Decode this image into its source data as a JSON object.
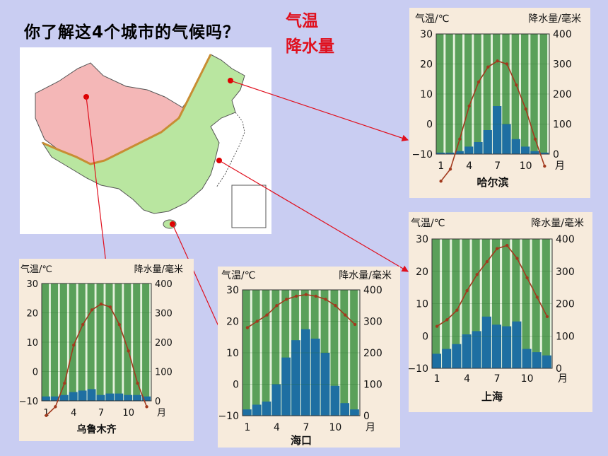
{
  "question": "你了解这4个城市的气候吗？",
  "legend": {
    "temperature": "气温",
    "precipitation": "降水量"
  },
  "colors": {
    "plot_bg": "#5aa05a",
    "bar": "#1e6fa2",
    "line": "#a23a1e",
    "panel": "#f7ebdc",
    "page": "#c9cdf2",
    "arrow": "#e0101e"
  },
  "chart_common": {
    "left_axis_label": "气温/℃",
    "right_axis_label": "降水量/毫米",
    "left_ticks": [
      "30",
      "20",
      "10",
      "0",
      "−10"
    ],
    "right_ticks": [
      "400",
      "300",
      "200",
      "100",
      "0"
    ],
    "x_ticks": [
      "1",
      "4",
      "7",
      "10"
    ],
    "x_unit": "月"
  },
  "chart_data": [
    {
      "type": "bar+line",
      "city": "哈尔滨",
      "categories": [
        "1",
        "2",
        "3",
        "4",
        "5",
        "6",
        "7",
        "8",
        "9",
        "10",
        "11",
        "12"
      ],
      "temp_ylim": [
        -10,
        30
      ],
      "precip_ylim": [
        0,
        400
      ],
      "temperature": [
        -19,
        -15,
        -5,
        6,
        14,
        19,
        21,
        20,
        13,
        5,
        -5,
        -14
      ],
      "precipitation": [
        5,
        5,
        10,
        25,
        40,
        80,
        160,
        100,
        50,
        25,
        10,
        5
      ]
    },
    {
      "type": "bar+line",
      "city": "上海",
      "categories": [
        "1",
        "2",
        "3",
        "4",
        "5",
        "6",
        "7",
        "8",
        "9",
        "10",
        "11",
        "12"
      ],
      "temp_ylim": [
        -10,
        30
      ],
      "precip_ylim": [
        0,
        400
      ],
      "temperature": [
        3,
        5,
        8,
        14,
        19,
        23,
        27,
        28,
        24,
        18,
        12,
        6
      ],
      "precipitation": [
        45,
        60,
        75,
        105,
        115,
        160,
        135,
        130,
        145,
        60,
        50,
        40
      ]
    },
    {
      "type": "bar+line",
      "city": "乌鲁木齐",
      "categories": [
        "1",
        "2",
        "3",
        "4",
        "5",
        "6",
        "7",
        "8",
        "9",
        "10",
        "11",
        "12"
      ],
      "temp_ylim": [
        -10,
        30
      ],
      "precip_ylim": [
        0,
        400
      ],
      "temperature": [
        -15,
        -12,
        -4,
        9,
        16,
        21,
        23,
        22,
        16,
        7,
        -4,
        -12
      ],
      "precipitation": [
        15,
        15,
        20,
        30,
        35,
        40,
        20,
        25,
        25,
        20,
        20,
        15
      ]
    },
    {
      "type": "bar+line",
      "city": "海口",
      "categories": [
        "1",
        "2",
        "3",
        "4",
        "5",
        "6",
        "7",
        "8",
        "9",
        "10",
        "11",
        "12"
      ],
      "temp_ylim": [
        -10,
        30
      ],
      "precip_ylim": [
        0,
        400
      ],
      "temperature": [
        18,
        20,
        22,
        25,
        27,
        28,
        28.5,
        28,
        27,
        25,
        22,
        19
      ],
      "precipitation": [
        20,
        35,
        45,
        100,
        185,
        240,
        275,
        245,
        200,
        95,
        40,
        20
      ]
    }
  ]
}
